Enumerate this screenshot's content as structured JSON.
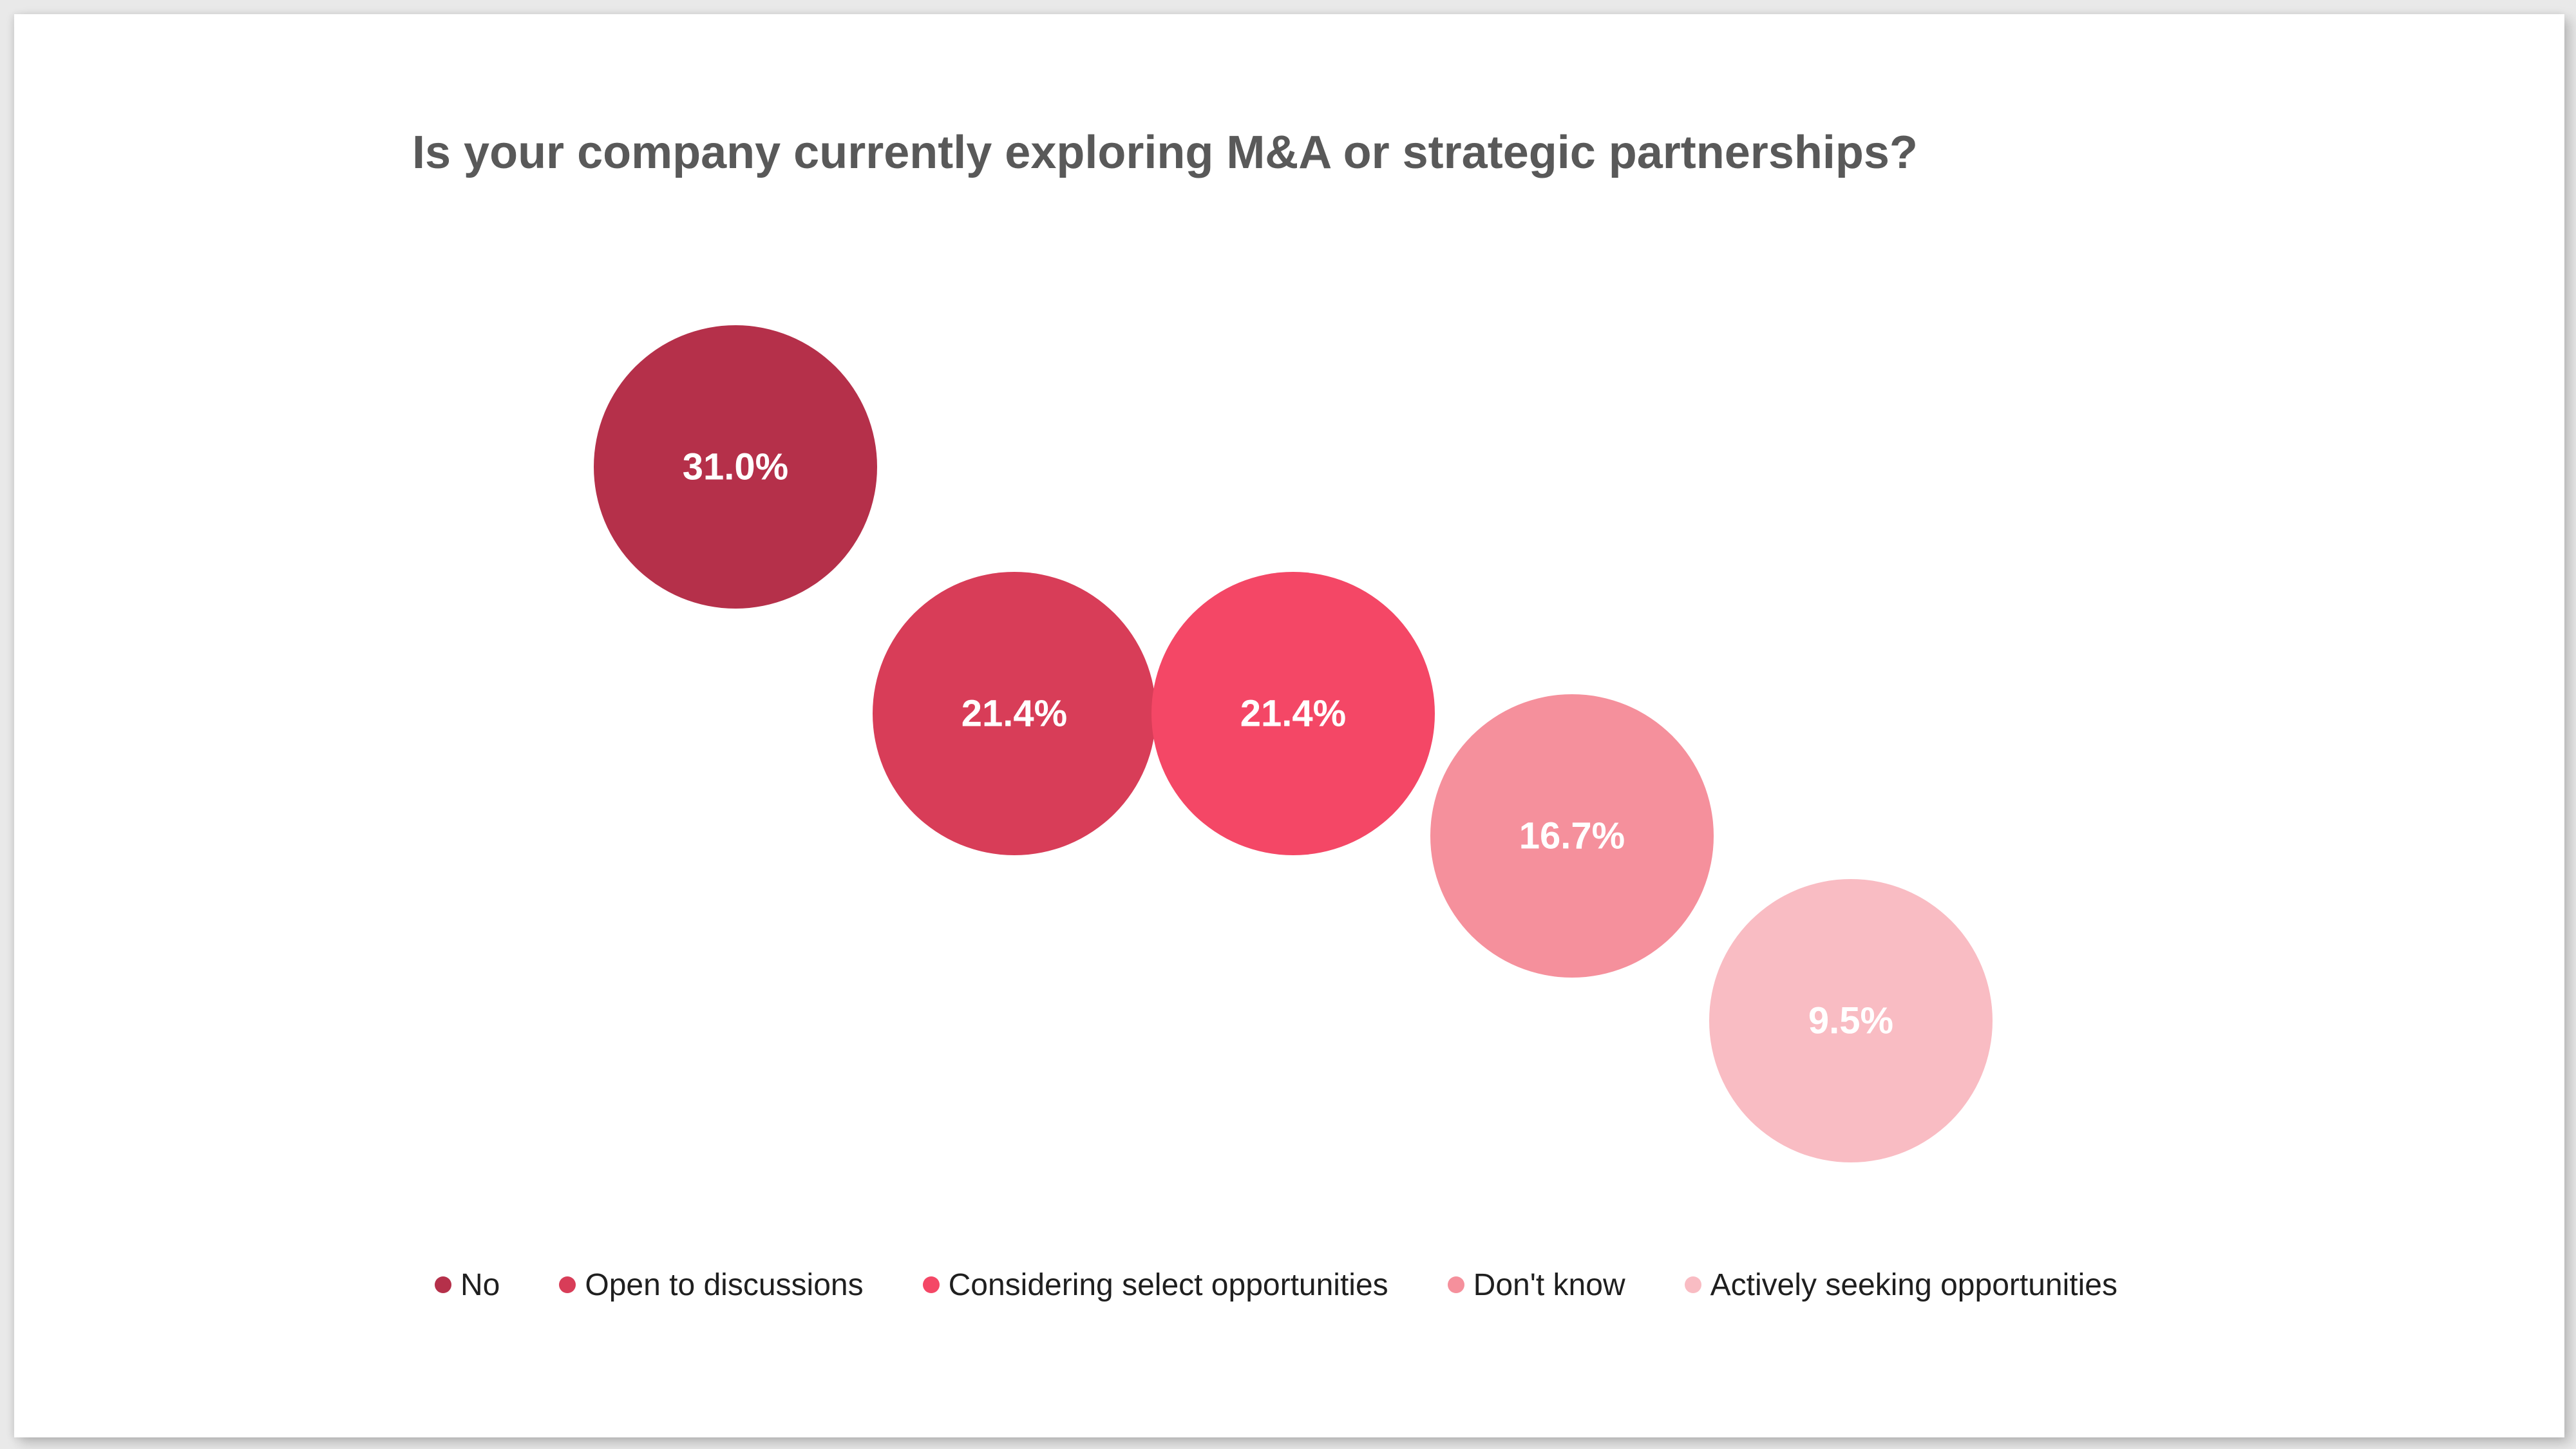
{
  "chart_data": {
    "type": "bubble",
    "title": "Is your company currently exploring M&A or strategic partnerships?",
    "unit": "%",
    "categories": [
      "No",
      "Open to discussions",
      "Considering select opportunities",
      "Don't know",
      "Actively seeking opportunities"
    ],
    "values": [
      31.0,
      21.4,
      21.4,
      16.7,
      9.5
    ],
    "data_labels": [
      "31.0%",
      "21.4%",
      "21.4%",
      "16.7%",
      "9.5%"
    ],
    "colors": [
      "#b5304a",
      "#d83d58",
      "#f44766",
      "#f5909c",
      "#f9bcc3"
    ],
    "label_color": "#ffffff",
    "legend_position": "bottom",
    "grid": false
  }
}
